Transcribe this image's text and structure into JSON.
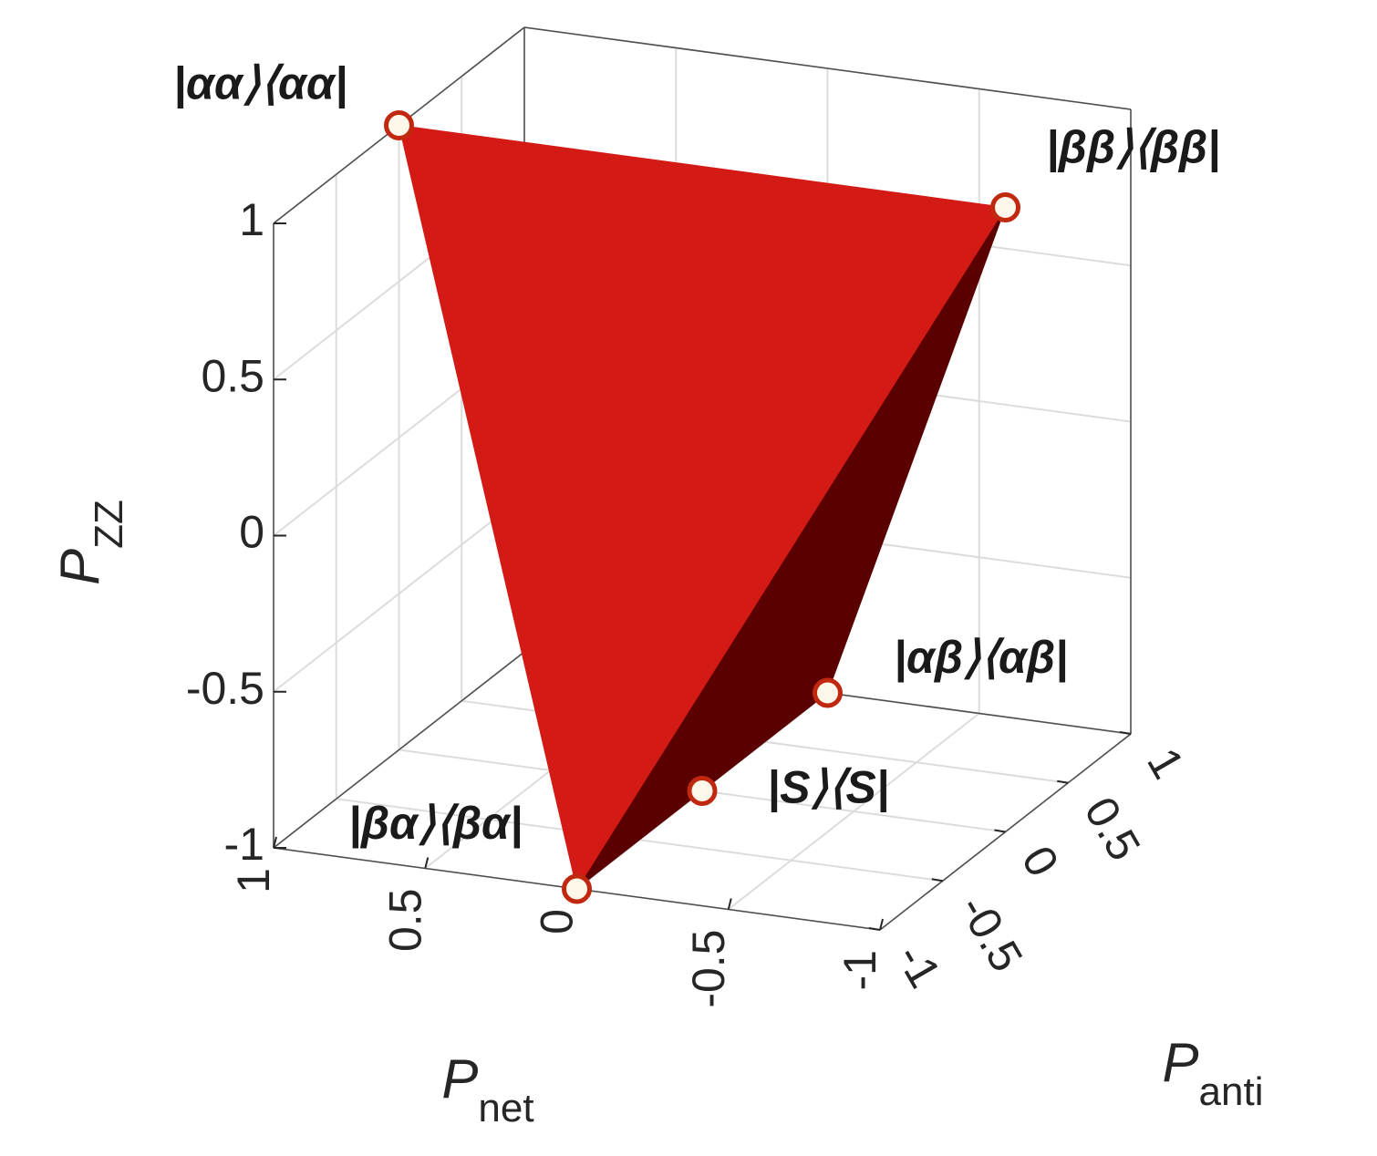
{
  "chart_data": {
    "type": "scatter3d",
    "xlabel": "P",
    "xlabel_sub": "net",
    "ylabel": "P",
    "ylabel_sub": "anti",
    "zlabel": "P",
    "zlabel_sub": "ZZ",
    "x": [
      1,
      -1,
      0,
      0,
      0
    ],
    "y": [
      0,
      0,
      1,
      0,
      -1
    ],
    "z": [
      1,
      1,
      -1,
      -1,
      -1
    ],
    "point_labels": [
      "|αα⟩⟨αα|",
      "|ββ⟩⟨ββ|",
      "|αβ⟩⟨αβ|",
      "|S⟩⟨S|",
      "|βα⟩⟨βα|"
    ],
    "xlim": [
      -1,
      1
    ],
    "ylim": [
      -1,
      1
    ],
    "zlim": [
      -1,
      1
    ],
    "xticks": [
      -1,
      -0.5,
      0,
      0.5,
      1
    ],
    "yticks": [
      -1,
      -0.5,
      0,
      0.5,
      1
    ],
    "zticks": [
      -1,
      -0.5,
      0,
      0.5,
      1
    ],
    "color": "#d41a14",
    "grid": true
  }
}
